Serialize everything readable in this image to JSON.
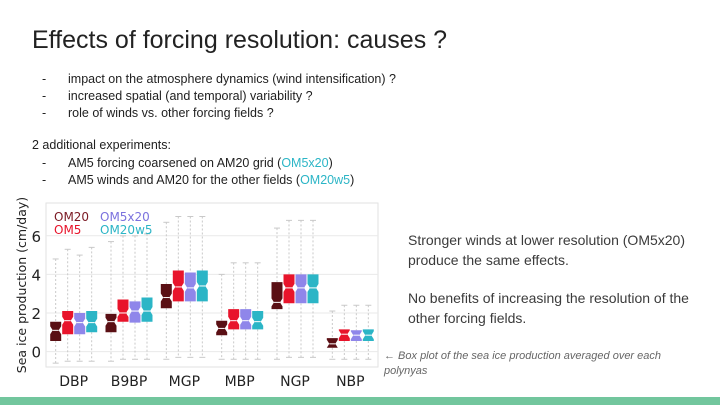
{
  "slide": {
    "title": "Effects of forcing resolution: causes ?",
    "bullets": [
      {
        "dash": "-",
        "text": "impact on the atmosphere dynamics (wind intensification) ?"
      },
      {
        "dash": "-",
        "text": "increased spatial (and temporal) variability ?"
      },
      {
        "dash": "-",
        "text": "role of winds vs. other forcing fields ?"
      }
    ],
    "experiments_heading": "2 additional experiments:",
    "experiments": [
      {
        "dash": "-",
        "text": "AM5 forcing coarsened on AM20 grid (",
        "highlight": "OM5x20",
        "suffix": ")"
      },
      {
        "dash": "-",
        "text": "AM5 winds and AM20 for the other fields (",
        "highlight": "OM20w5",
        "suffix": ")"
      }
    ],
    "note_1": "Stronger winds at lower resolution (OM5x20) produce the same effects.",
    "note_2": "No benefits of increasing the resolution of the other forcing fields.",
    "caption": "←  Box plot of the sea ice production averaged over each polynyas",
    "accent_color": "#72c69d",
    "highlight_color": "#2bb5c6"
  },
  "chart_data": {
    "type": "box",
    "ylabel": "Sea ice production (cm/day)",
    "ylim": [
      -0.8,
      7.7
    ],
    "yticks": [
      0,
      2,
      4,
      6
    ],
    "grid": true,
    "legend_position": "top-left",
    "categories": [
      "DBP",
      "B9BP",
      "MGP",
      "MBP",
      "NGP",
      "NBP"
    ],
    "series": [
      {
        "name": "OM20",
        "color": "#5a0f14",
        "legend_color": "#7b1a24",
        "boxes": [
          {
            "whislo": -0.6,
            "q1": 0.55,
            "med": 1.1,
            "q3": 1.55,
            "whishi": 4.8
          },
          {
            "whislo": -0.5,
            "q1": 1.0,
            "med": 1.55,
            "q3": 1.95,
            "whishi": 5.7
          },
          {
            "whislo": -0.4,
            "q1": 2.25,
            "med": 2.8,
            "q3": 3.5,
            "whishi": 6.7
          },
          {
            "whislo": -0.4,
            "q1": 0.85,
            "med": 1.2,
            "q3": 1.6,
            "whishi": 4.0
          },
          {
            "whislo": -0.4,
            "q1": 2.2,
            "med": 2.55,
            "q3": 3.6,
            "whishi": 6.4
          },
          {
            "whislo": -0.4,
            "q1": 0.2,
            "med": 0.4,
            "q3": 0.7,
            "whishi": 2.1
          }
        ]
      },
      {
        "name": "OM5",
        "color": "#e8142b",
        "legend_color": "#e8142b",
        "boxes": [
          {
            "whislo": -0.5,
            "q1": 0.9,
            "med": 1.6,
            "q3": 2.1,
            "whishi": 5.3
          },
          {
            "whislo": -0.4,
            "q1": 1.55,
            "med": 2.0,
            "q3": 2.7,
            "whishi": 6.0
          },
          {
            "whislo": -0.3,
            "q1": 2.6,
            "med": 3.35,
            "q3": 4.2,
            "whishi": 7.0
          },
          {
            "whislo": -0.4,
            "q1": 1.15,
            "med": 1.6,
            "q3": 2.2,
            "whishi": 4.6
          },
          {
            "whislo": -0.3,
            "q1": 2.5,
            "med": 3.3,
            "q3": 4.0,
            "whishi": 6.8
          },
          {
            "whislo": -0.4,
            "q1": 0.55,
            "med": 0.9,
            "q3": 1.15,
            "whishi": 2.4
          }
        ]
      },
      {
        "name": "OM5x20",
        "color": "#8f86ea",
        "legend_color": "#7b72de",
        "boxes": [
          {
            "whislo": -0.5,
            "q1": 0.9,
            "med": 1.5,
            "q3": 2.0,
            "whishi": 5.0
          },
          {
            "whislo": -0.4,
            "q1": 1.5,
            "med": 2.1,
            "q3": 2.6,
            "whishi": 6.0
          },
          {
            "whislo": -0.3,
            "q1": 2.6,
            "med": 3.3,
            "q3": 4.1,
            "whishi": 7.0
          },
          {
            "whislo": -0.4,
            "q1": 1.15,
            "med": 1.6,
            "q3": 2.2,
            "whishi": 4.6
          },
          {
            "whislo": -0.3,
            "q1": 2.5,
            "med": 3.3,
            "q3": 4.0,
            "whishi": 6.8
          },
          {
            "whislo": -0.4,
            "q1": 0.55,
            "med": 0.85,
            "q3": 1.1,
            "whishi": 2.4
          }
        ]
      },
      {
        "name": "OM20w5",
        "color": "#2bb5c6",
        "legend_color": "#2bb5c6",
        "boxes": [
          {
            "whislo": -0.5,
            "q1": 1.0,
            "med": 1.5,
            "q3": 2.1,
            "whishi": 5.4
          },
          {
            "whislo": -0.4,
            "q1": 1.55,
            "med": 2.1,
            "q3": 2.8,
            "whishi": 6.1
          },
          {
            "whislo": -0.3,
            "q1": 2.6,
            "med": 3.4,
            "q3": 4.2,
            "whishi": 7.0
          },
          {
            "whislo": -0.4,
            "q1": 1.15,
            "med": 1.55,
            "q3": 2.1,
            "whishi": 4.6
          },
          {
            "whislo": -0.3,
            "q1": 2.5,
            "med": 3.3,
            "q3": 4.0,
            "whishi": 6.8
          },
          {
            "whislo": -0.4,
            "q1": 0.55,
            "med": 0.85,
            "q3": 1.15,
            "whishi": 2.4
          }
        ]
      }
    ]
  }
}
